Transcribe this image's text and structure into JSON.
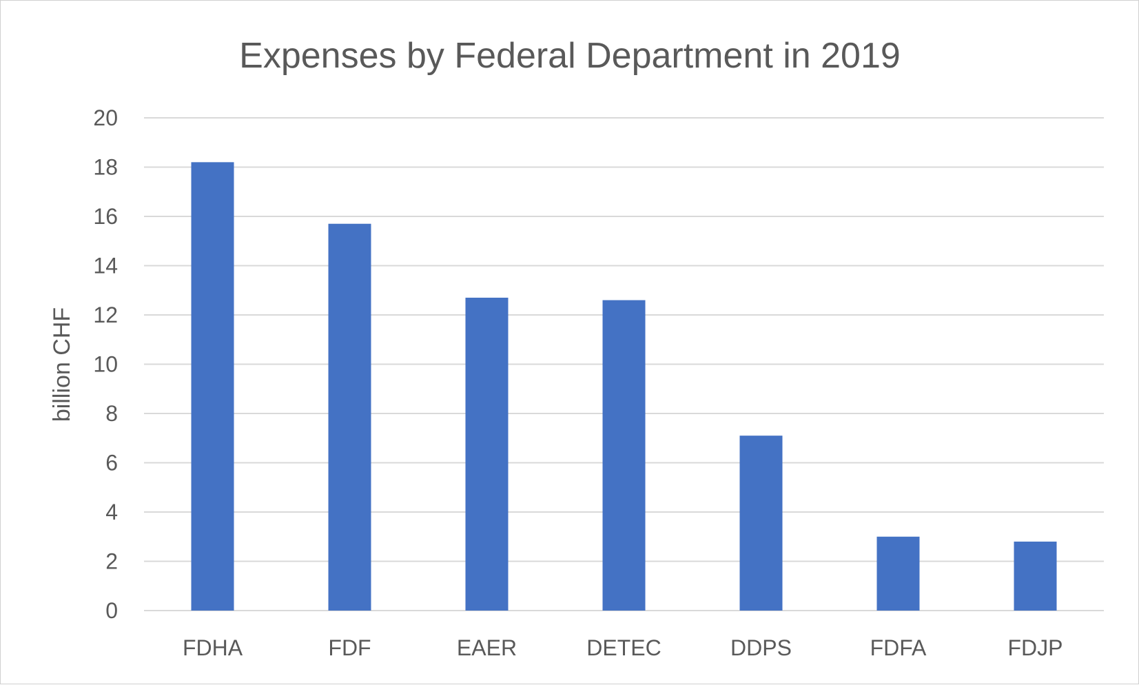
{
  "chart_data": {
    "type": "bar",
    "title": "Expenses by Federal Department in 2019",
    "ylabel": "billion CHF",
    "xlabel": "",
    "categories": [
      "FDHA",
      "FDF",
      "EAER",
      "DETEC",
      "DDPS",
      "FDFA",
      "FDJP"
    ],
    "values": [
      18.2,
      15.7,
      12.7,
      12.6,
      7.1,
      3.0,
      2.8
    ],
    "ylim": [
      0,
      20
    ],
    "yticks": [
      0,
      2,
      4,
      6,
      8,
      10,
      12,
      14,
      16,
      18,
      20
    ],
    "grid": true,
    "legend": "none",
    "colors": {
      "bar": "#4472C4",
      "grid": "#d9d9d9",
      "text": "#595959"
    }
  }
}
